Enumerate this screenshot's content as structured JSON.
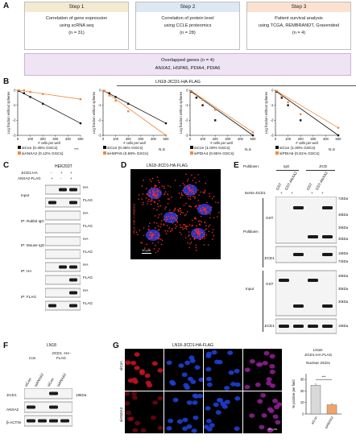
{
  "panel_letters": [
    "A",
    "B",
    "C",
    "D",
    "E",
    "F",
    "G"
  ],
  "panelA": {
    "steps": [
      {
        "head": "Step 1",
        "lines": [
          "Correlation of gene expression",
          "using scRNA seq",
          "(n = 31)"
        ],
        "color": "#f3ead2"
      },
      {
        "head": "Step 2",
        "lines": [
          "Correlation of protein level",
          "using CCLE proteomics",
          "(n = 28)"
        ],
        "color": "#dde8f3"
      },
      {
        "head": "Step 3",
        "lines": [
          "Patient survival analysis",
          "using TCGA, REMBRANDT, Gravendeel",
          "(n = 4)"
        ],
        "color": "#fbe1cf"
      }
    ],
    "overlap_title": "Overlapped genes (n = 4)",
    "overlap_genes": "ANXA2, HSPA5, PDIA4, PDIA6"
  },
  "panelB": {
    "title": "LN18-JICD1-HA-FLAG",
    "ylabel": "Log fraction without spheres",
    "xlabel": "# cells per well",
    "x_ticks": [
      "0",
      "100",
      "200",
      "300",
      "400",
      "500"
    ],
    "y_ticks": [
      "0",
      "-1",
      "-2",
      "-3"
    ],
    "stats": [
      "***",
      "N.S",
      "N.S",
      "N.S"
    ]
  },
  "chart_data": [
    {
      "type": "line",
      "xlabel": "# cells per well",
      "ylabel": "Log fraction without spheres",
      "xlim": [
        0,
        500
      ],
      "ylim": [
        -3,
        0
      ],
      "series": [
        {
          "name": "siCon (0.45% GSCs)",
          "color": "#111111",
          "x": [
            10,
            50,
            100,
            200,
            500
          ],
          "y": [
            -0.05,
            -0.2,
            -0.45,
            -0.9,
            -2.2
          ]
        },
        {
          "name": "siANXA2 (0.12% GSCs)",
          "color": "#f08a3c",
          "x": [
            10,
            50,
            100,
            200,
            500
          ],
          "y": [
            0,
            0,
            -0.12,
            -0.25,
            -0.6
          ]
        }
      ]
    },
    {
      "type": "line",
      "xlabel": "# cells per well",
      "ylabel": "Log fraction without spheres",
      "xlim": [
        0,
        500
      ],
      "ylim": [
        -3,
        0
      ],
      "series": [
        {
          "name": "siCon (0.45% GSCs)",
          "color": "#111111",
          "x": [
            10,
            50,
            100,
            200,
            500
          ],
          "y": [
            -0.05,
            -0.2,
            -0.45,
            -0.9,
            -2.2
          ]
        },
        {
          "name": "siHSPA5 (0.69% GSCs)",
          "color": "#f08a3c",
          "x": [
            10,
            50,
            100,
            200,
            500
          ],
          "y": [
            -0.05,
            -0.35,
            -0.7,
            -1.4,
            -3.0
          ]
        }
      ]
    },
    {
      "type": "line",
      "xlabel": "# cells per well",
      "ylabel": "Log fraction without spheres",
      "xlim": [
        0,
        500
      ],
      "ylim": [
        -3,
        0
      ],
      "series": [
        {
          "name": "siCon (1.00% GSCs)",
          "color": "#111111",
          "x": [
            10,
            50,
            100,
            200,
            500
          ],
          "y": [
            -0.1,
            -0.5,
            -1.0,
            -2.0,
            -3.0
          ]
        },
        {
          "name": "siPDIA4 (0.65% GSCs)",
          "color": "#f08a3c",
          "x": [
            10,
            50,
            100,
            200,
            500
          ],
          "y": [
            -0.05,
            -0.3,
            -0.65,
            -1.3,
            -2.8
          ]
        }
      ]
    },
    {
      "type": "line",
      "xlabel": "# cells per well",
      "ylabel": "Log fraction without spheres",
      "xlim": [
        0,
        500
      ],
      "ylim": [
        -3,
        0
      ],
      "series": [
        {
          "name": "siCon (1.00% GSCs)",
          "color": "#111111",
          "x": [
            10,
            50,
            100,
            200,
            500
          ],
          "y": [
            -0.1,
            -0.5,
            -1.0,
            -2.0,
            -3.0
          ]
        },
        {
          "name": "siPDIA6 (0.81% GSCs)",
          "color": "#f08a3c",
          "x": [
            10,
            50,
            100,
            200,
            500
          ],
          "y": [
            -0.05,
            -0.4,
            -0.8,
            -1.6,
            -2.5
          ]
        }
      ]
    }
  ],
  "panelC": {
    "title": "HEK293T",
    "row_labels": [
      "JICD1-HA",
      "ANXA2-FLAG"
    ],
    "row1_signs": [
      "-",
      "+",
      "+"
    ],
    "row2_signs": [
      "+",
      "-",
      "+"
    ],
    "sections": [
      "Input",
      "IP: Rabbit IgG",
      "IP: Mouse IgG",
      "IP: HA",
      "IP: FLAG"
    ],
    "blots": [
      "HA",
      "FLAG"
    ]
  },
  "panelD": {
    "title": "LN18-JICD1-HA-FLAG",
    "side_label": "PLA: HA + ANXA2",
    "scale": "10 μm"
  },
  "panelE": {
    "pulldown": "Pulldown:",
    "igg": "IgG",
    "jicd": "JICD",
    "cols": [
      "GST",
      "GST-ANXA2",
      "GST",
      "GST-ANXA2"
    ],
    "his": "6xHis-JICD1",
    "his_signs": [
      "+",
      "+",
      "+",
      "+"
    ],
    "group1": "Pulldown",
    "group2": "Input",
    "rows": [
      "GST",
      "JICD1",
      "GST",
      "JICD1"
    ],
    "markers": [
      "72kDa",
      "48kDa",
      "35kDa",
      "30kDa",
      "19kDa",
      "72kDa",
      "48kDa",
      "35kDa",
      "30kDa",
      "19kDa"
    ]
  },
  "panelF": {
    "title": "LN18",
    "con": "Con",
    "jicd": "JICD1 -HA-FLAG",
    "lanes": [
      "siCon",
      "siANXA2",
      "siCon",
      "siANXA2"
    ],
    "rows": [
      "JICD1",
      "ANXA2",
      "β-ACTIN"
    ],
    "marker": "19kDa"
  },
  "panelG": {
    "title": "LN18-JICD1-HA-FLAG",
    "rows": [
      "siCon",
      "siANXA2"
    ],
    "scale": "20 μm",
    "chart_title": [
      "LN18-",
      "JICD1-HA-FLAG",
      "Nuclear JICD1"
    ],
    "ylabel": "% positive per field",
    "sig": "***",
    "yticks": [
      "0",
      "10",
      "20",
      "30"
    ],
    "xticks": [
      "siCon",
      "siANXA2"
    ]
  },
  "chart_g": {
    "type": "bar",
    "categories": [
      "siCon",
      "siANXA2"
    ],
    "values": [
      25,
      8
    ],
    "ylim": [
      0,
      35
    ],
    "colors": [
      "#d9d9d9",
      "#f2a36a"
    ]
  }
}
